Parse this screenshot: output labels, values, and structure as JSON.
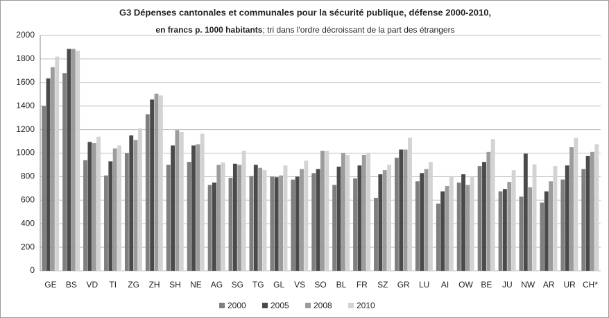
{
  "chart_data": {
    "type": "bar",
    "title": "G3 Dépenses  cantonales  et communales pour la sécurité publique,  défense 2000-2010,",
    "subtitle": [
      "en francs p. 1000 habitants",
      "; tri dans l'ordre décroissant de la part des étrangers"
    ],
    "categories": [
      "GE",
      "BS",
      "VD",
      "TI",
      "ZG",
      "ZH",
      "SH",
      "NE",
      "AG",
      "SG",
      "TG",
      "GL",
      "VS",
      "SO",
      "BL",
      "FR",
      "SZ",
      "GR",
      "LU",
      "AI",
      "OW",
      "BE",
      "JU",
      "NW",
      "AR",
      "UR",
      "CH*"
    ],
    "series": [
      {
        "name": "2000",
        "color": "#7f7f7f",
        "values": [
          1400,
          1680,
          940,
          810,
          1000,
          1330,
          900,
          925,
          730,
          790,
          805,
          800,
          775,
          830,
          730,
          785,
          620,
          960,
          760,
          570,
          750,
          890,
          675,
          630,
          580,
          775,
          865
        ]
      },
      {
        "name": "2005",
        "color": "#4a4a4a",
        "values": [
          1635,
          1885,
          1095,
          930,
          1150,
          1455,
          1065,
          1065,
          750,
          910,
          900,
          795,
          800,
          865,
          885,
          895,
          820,
          1030,
          830,
          675,
          820,
          925,
          695,
          995,
          675,
          895,
          975
        ]
      },
      {
        "name": "2008",
        "color": "#9c9c9c",
        "values": [
          1730,
          1885,
          1085,
          1040,
          1110,
          1505,
          1195,
          1075,
          900,
          900,
          875,
          810,
          865,
          1020,
          1000,
          985,
          855,
          1030,
          865,
          720,
          730,
          1010,
          755,
          710,
          760,
          1050,
          1010
        ]
      },
      {
        "name": "2010",
        "color": "#d3d3d3",
        "values": [
          1820,
          1870,
          1140,
          1065,
          1210,
          1490,
          1180,
          1165,
          920,
          1020,
          855,
          895,
          935,
          1020,
          985,
          995,
          900,
          1130,
          925,
          800,
          800,
          1120,
          855,
          905,
          890,
          1130,
          1075
        ]
      }
    ],
    "ylim": [
      0,
      2000
    ],
    "yticks": [
      0,
      200,
      400,
      600,
      800,
      1000,
      1200,
      1400,
      1600,
      1800,
      2000
    ],
    "grid": true,
    "legend": "bottom"
  }
}
